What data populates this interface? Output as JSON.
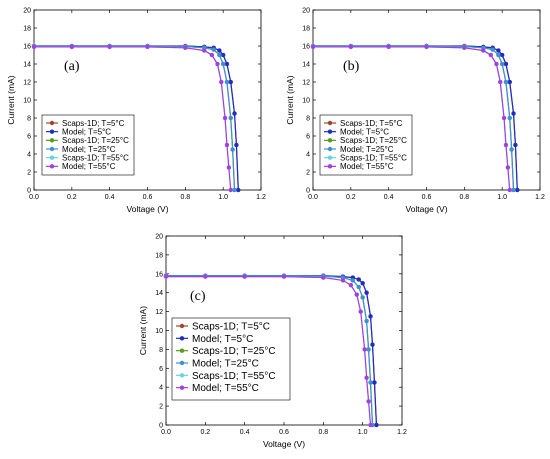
{
  "chart_data": [
    {
      "type": "line",
      "panel_label": "(a)",
      "xlabel": "Voltage (V)",
      "ylabel": "Current (mA)",
      "xlim": [
        0.0,
        1.2
      ],
      "ylim": [
        0,
        20
      ],
      "x_ticks": [
        "0.0",
        "0.2",
        "0.4",
        "0.6",
        "0.8",
        "1.0",
        "1.2"
      ],
      "y_ticks": [
        "0",
        "2",
        "4",
        "6",
        "8",
        "10",
        "12",
        "14",
        "16",
        "18",
        "20"
      ],
      "grid": false,
      "legend_position": "bottom-left",
      "series": [
        {
          "name": "Scaps-1D; T=5°C",
          "color": "#a0462c",
          "marker": "circle",
          "x": [
            0,
            0.2,
            0.4,
            0.6,
            0.8,
            0.9,
            0.95,
            0.98,
            1.0,
            1.02,
            1.04,
            1.06,
            1.07,
            1.08
          ],
          "y": [
            16.0,
            16.0,
            16.0,
            16.0,
            16.0,
            15.9,
            15.8,
            15.5,
            15.0,
            14.0,
            12.0,
            8.5,
            5.0,
            0
          ]
        },
        {
          "name": "Model; T=5°C",
          "color": "#1c2ec8",
          "marker": "circle",
          "x": [
            0,
            0.2,
            0.4,
            0.6,
            0.8,
            0.9,
            0.95,
            0.98,
            1.0,
            1.02,
            1.04,
            1.06,
            1.07,
            1.08
          ],
          "y": [
            16.0,
            16.0,
            16.0,
            16.0,
            16.0,
            15.9,
            15.8,
            15.5,
            15.0,
            14.0,
            12.0,
            8.5,
            5.0,
            0
          ]
        },
        {
          "name": "Scaps-1D; T=25°C",
          "color": "#5a9a20",
          "marker": "circle",
          "x": [
            0,
            0.2,
            0.4,
            0.6,
            0.8,
            0.9,
            0.95,
            0.98,
            1.0,
            1.02,
            1.04,
            1.05,
            1.06
          ],
          "y": [
            16.0,
            16.0,
            16.0,
            16.0,
            15.95,
            15.8,
            15.6,
            15.0,
            14.0,
            12.0,
            8.0,
            4.5,
            0
          ]
        },
        {
          "name": "Model; T=25°C",
          "color": "#3f8fd8",
          "marker": "circle",
          "x": [
            0,
            0.2,
            0.4,
            0.6,
            0.8,
            0.9,
            0.95,
            0.98,
            1.0,
            1.02,
            1.04,
            1.05,
            1.06
          ],
          "y": [
            16.0,
            16.0,
            16.0,
            16.0,
            15.95,
            15.8,
            15.6,
            15.0,
            14.0,
            12.0,
            8.0,
            4.5,
            0
          ]
        },
        {
          "name": "Scaps-1D; T=55°C",
          "color": "#66d3e2",
          "marker": "circle",
          "x": [
            0,
            0.2,
            0.4,
            0.6,
            0.8,
            0.9,
            0.94,
            0.97,
            0.99,
            1.01,
            1.02,
            1.03,
            1.04
          ],
          "y": [
            15.9,
            15.9,
            15.9,
            15.9,
            15.8,
            15.5,
            15.0,
            14.0,
            12.0,
            8.0,
            5.0,
            2.5,
            0
          ]
        },
        {
          "name": "Model; T=55°C",
          "color": "#a43ee0",
          "marker": "circle",
          "x": [
            0,
            0.2,
            0.4,
            0.6,
            0.8,
            0.9,
            0.94,
            0.97,
            0.99,
            1.01,
            1.02,
            1.03,
            1.04
          ],
          "y": [
            15.9,
            15.9,
            15.9,
            15.9,
            15.8,
            15.5,
            15.0,
            14.0,
            12.0,
            8.0,
            5.0,
            2.5,
            0
          ]
        }
      ]
    },
    {
      "type": "line",
      "panel_label": "(b)",
      "xlabel": "Voltage (V)",
      "ylabel": "Current (mA)",
      "xlim": [
        0.0,
        1.2
      ],
      "ylim": [
        0,
        20
      ],
      "x_ticks": [
        "0.0",
        "0.2",
        "0.4",
        "0.6",
        "0.8",
        "1.0",
        "1.2"
      ],
      "y_ticks": [
        "0",
        "2",
        "4",
        "6",
        "8",
        "10",
        "12",
        "14",
        "16",
        "18",
        "20"
      ],
      "grid": false,
      "legend_position": "bottom-left",
      "series": [
        {
          "name": "Scaps-1D; T=5°C",
          "color": "#a0462c",
          "marker": "circle",
          "x": [
            0,
            0.2,
            0.4,
            0.6,
            0.8,
            0.9,
            0.95,
            0.98,
            1.0,
            1.02,
            1.04,
            1.06,
            1.07,
            1.08
          ],
          "y": [
            16.0,
            16.0,
            16.0,
            16.0,
            16.0,
            15.9,
            15.8,
            15.5,
            15.0,
            14.0,
            12.0,
            8.5,
            5.0,
            0
          ]
        },
        {
          "name": "Model; T=5°C",
          "color": "#1c2ec8",
          "marker": "circle",
          "x": [
            0,
            0.2,
            0.4,
            0.6,
            0.8,
            0.9,
            0.95,
            0.98,
            1.0,
            1.02,
            1.04,
            1.06,
            1.07,
            1.08
          ],
          "y": [
            16.0,
            16.0,
            16.0,
            16.0,
            16.0,
            15.9,
            15.8,
            15.5,
            15.0,
            14.0,
            12.0,
            8.5,
            5.0,
            0
          ]
        },
        {
          "name": "Scaps-1D; T=25°C",
          "color": "#5a9a20",
          "marker": "circle",
          "x": [
            0,
            0.2,
            0.4,
            0.6,
            0.8,
            0.9,
            0.95,
            0.98,
            1.0,
            1.02,
            1.04,
            1.05,
            1.06
          ],
          "y": [
            16.0,
            16.0,
            16.0,
            16.0,
            15.95,
            15.8,
            15.6,
            15.0,
            14.0,
            12.0,
            8.0,
            4.5,
            0
          ]
        },
        {
          "name": "Model; T=25°C",
          "color": "#3f8fd8",
          "marker": "circle",
          "x": [
            0,
            0.2,
            0.4,
            0.6,
            0.8,
            0.9,
            0.95,
            0.98,
            1.0,
            1.02,
            1.04,
            1.05,
            1.06
          ],
          "y": [
            16.0,
            16.0,
            16.0,
            16.0,
            15.95,
            15.8,
            15.6,
            15.0,
            14.0,
            12.0,
            8.0,
            4.5,
            0
          ]
        },
        {
          "name": "Scaps-1D; T=55°C",
          "color": "#66d3e2",
          "marker": "circle",
          "x": [
            0,
            0.2,
            0.4,
            0.6,
            0.8,
            0.9,
            0.94,
            0.97,
            0.99,
            1.01,
            1.02,
            1.03,
            1.04
          ],
          "y": [
            15.9,
            15.9,
            15.9,
            15.9,
            15.8,
            15.5,
            15.0,
            14.0,
            12.0,
            8.0,
            5.0,
            2.5,
            0
          ]
        },
        {
          "name": "Model; T=55°C",
          "color": "#a43ee0",
          "marker": "circle",
          "x": [
            0,
            0.2,
            0.4,
            0.6,
            0.8,
            0.9,
            0.94,
            0.97,
            0.99,
            1.01,
            1.02,
            1.03,
            1.04
          ],
          "y": [
            15.9,
            15.9,
            15.9,
            15.9,
            15.8,
            15.5,
            15.0,
            14.0,
            12.0,
            8.0,
            5.0,
            2.5,
            0
          ]
        }
      ]
    },
    {
      "type": "line",
      "panel_label": "(c)",
      "xlabel": "Voltage (V)",
      "ylabel": "Current (mA)",
      "xlim": [
        0.0,
        1.2
      ],
      "ylim": [
        0,
        20
      ],
      "x_ticks": [
        "0.0",
        "0.2",
        "0.4",
        "0.6",
        "0.8",
        "1.0",
        "1.2"
      ],
      "y_ticks": [
        "0",
        "2",
        "4",
        "6",
        "8",
        "10",
        "12",
        "14",
        "16",
        "18",
        "20"
      ],
      "grid": false,
      "legend_position": "bottom-left",
      "series": [
        {
          "name": "Scaps-1D; T=5°C",
          "color": "#a0462c",
          "marker": "circle",
          "x": [
            0,
            0.2,
            0.4,
            0.6,
            0.8,
            0.9,
            0.95,
            0.98,
            1.0,
            1.02,
            1.04,
            1.05,
            1.06,
            1.07
          ],
          "y": [
            15.8,
            15.8,
            15.8,
            15.8,
            15.8,
            15.7,
            15.6,
            15.4,
            15.0,
            14.0,
            11.5,
            8.5,
            4.5,
            0
          ]
        },
        {
          "name": "Model; T=5°C",
          "color": "#1c2ec8",
          "marker": "circle",
          "x": [
            0,
            0.2,
            0.4,
            0.6,
            0.8,
            0.9,
            0.95,
            0.98,
            1.0,
            1.02,
            1.04,
            1.05,
            1.06,
            1.07
          ],
          "y": [
            15.8,
            15.8,
            15.8,
            15.8,
            15.8,
            15.7,
            15.6,
            15.4,
            15.0,
            14.0,
            11.5,
            8.5,
            4.5,
            0
          ]
        },
        {
          "name": "Scaps-1D; T=25°C",
          "color": "#5a9a20",
          "marker": "circle",
          "x": [
            0,
            0.2,
            0.4,
            0.6,
            0.8,
            0.9,
            0.95,
            0.98,
            1.0,
            1.02,
            1.03,
            1.04,
            1.05
          ],
          "y": [
            15.8,
            15.8,
            15.8,
            15.8,
            15.75,
            15.6,
            15.3,
            14.6,
            13.5,
            11.0,
            8.0,
            4.5,
            0
          ]
        },
        {
          "name": "Model; T=25°C",
          "color": "#3f8fd8",
          "marker": "circle",
          "x": [
            0,
            0.2,
            0.4,
            0.6,
            0.8,
            0.9,
            0.95,
            0.98,
            1.0,
            1.02,
            1.03,
            1.04,
            1.05
          ],
          "y": [
            15.8,
            15.8,
            15.8,
            15.8,
            15.75,
            15.6,
            15.3,
            14.6,
            13.5,
            11.0,
            8.0,
            4.5,
            0
          ]
        },
        {
          "name": "Scaps-1D; T=55°C",
          "color": "#66d3e2",
          "marker": "circle",
          "x": [
            0,
            0.2,
            0.4,
            0.6,
            0.8,
            0.9,
            0.94,
            0.97,
            0.99,
            1.01,
            1.02,
            1.03,
            1.04
          ],
          "y": [
            15.7,
            15.7,
            15.7,
            15.7,
            15.6,
            15.3,
            14.8,
            13.8,
            12.0,
            8.0,
            5.0,
            2.5,
            0
          ]
        },
        {
          "name": "Model; T=55°C",
          "color": "#a43ee0",
          "marker": "circle",
          "x": [
            0,
            0.2,
            0.4,
            0.6,
            0.8,
            0.9,
            0.94,
            0.97,
            0.99,
            1.01,
            1.02,
            1.03,
            1.04
          ],
          "y": [
            15.7,
            15.7,
            15.7,
            15.7,
            15.6,
            15.3,
            14.8,
            13.8,
            12.0,
            8.0,
            5.0,
            2.5,
            0
          ]
        }
      ]
    }
  ]
}
